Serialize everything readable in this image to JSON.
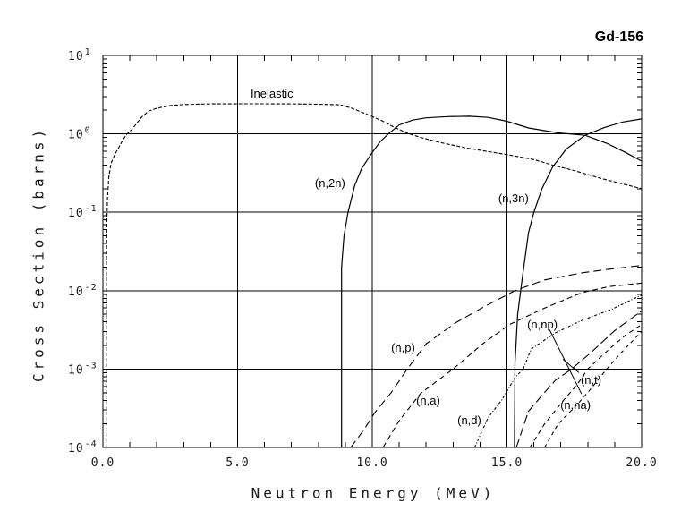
{
  "title": "Gd-156",
  "chart_data": {
    "type": "line",
    "title": "Gd-156",
    "xlabel": "Neutron Energy (MeV)",
    "ylabel": "Cross Section (barns)",
    "x_range": [
      0,
      20
    ],
    "y_exp_range": [
      1,
      -4
    ],
    "grid": true,
    "x_gridlines": [
      5,
      10,
      15
    ],
    "y_gridline_exps": [
      0,
      -1,
      -2,
      -3
    ],
    "x_major_ticks": [
      0,
      5,
      10,
      15,
      20
    ],
    "x_tick_labels": [
      "0.0",
      "5.0",
      "10.0",
      "15.0",
      "20.0"
    ],
    "x_minor_tick_step": 1,
    "y_tick_exps": [
      1,
      0,
      -1,
      -2,
      -3,
      -4
    ],
    "series": [
      {
        "id": "inelastic",
        "name": "Inelastic",
        "line": "dashed-fine",
        "dash": "4,2",
        "points": [
          [
            0.12,
            0.0001
          ],
          [
            0.13,
            0.02
          ],
          [
            0.15,
            0.08
          ],
          [
            0.17,
            0.15
          ],
          [
            0.22,
            0.28
          ],
          [
            0.3,
            0.42
          ],
          [
            0.45,
            0.55
          ],
          [
            0.6,
            0.68
          ],
          [
            0.75,
            0.85
          ],
          [
            0.9,
            1.0
          ],
          [
            1.05,
            1.12
          ],
          [
            1.25,
            1.35
          ],
          [
            1.45,
            1.65
          ],
          [
            1.7,
            1.95
          ],
          [
            2.0,
            2.12
          ],
          [
            2.5,
            2.3
          ],
          [
            3.0,
            2.37
          ],
          [
            4.0,
            2.41
          ],
          [
            5.0,
            2.42
          ],
          [
            6.0,
            2.42
          ],
          [
            7.0,
            2.41
          ],
          [
            8.0,
            2.39
          ],
          [
            8.8,
            2.35
          ],
          [
            9.2,
            2.15
          ],
          [
            9.6,
            1.9
          ],
          [
            10.0,
            1.66
          ],
          [
            10.4,
            1.45
          ],
          [
            10.7,
            1.27
          ],
          [
            11.3,
            1.02
          ],
          [
            11.8,
            0.9
          ],
          [
            12.5,
            0.78
          ],
          [
            13.5,
            0.66
          ],
          [
            14.5,
            0.58
          ],
          [
            15.2,
            0.53
          ],
          [
            16.0,
            0.47
          ],
          [
            16.7,
            0.4
          ],
          [
            17.5,
            0.34
          ],
          [
            18.5,
            0.27
          ],
          [
            19.3,
            0.23
          ],
          [
            20.0,
            0.2
          ]
        ]
      },
      {
        "id": "n2n",
        "name": "(n,2n)",
        "line": "solid",
        "dash": "",
        "points": [
          [
            8.86,
            0.0001
          ],
          [
            8.86,
            0.02
          ],
          [
            8.95,
            0.05
          ],
          [
            9.1,
            0.1
          ],
          [
            9.35,
            0.22
          ],
          [
            9.6,
            0.36
          ],
          [
            10.0,
            0.58
          ],
          [
            10.3,
            0.8
          ],
          [
            10.6,
            1.0
          ],
          [
            11.0,
            1.3
          ],
          [
            11.5,
            1.5
          ],
          [
            12.0,
            1.6
          ],
          [
            12.8,
            1.66
          ],
          [
            13.6,
            1.68
          ],
          [
            14.3,
            1.62
          ],
          [
            15.0,
            1.45
          ],
          [
            15.8,
            1.19
          ],
          [
            16.9,
            1.03
          ],
          [
            17.9,
            0.96
          ],
          [
            18.7,
            0.76
          ],
          [
            19.4,
            0.58
          ],
          [
            20.0,
            0.45
          ]
        ]
      },
      {
        "id": "n3n",
        "name": "(n,3n)",
        "line": "solid",
        "dash": "",
        "points": [
          [
            15.28,
            0.0001
          ],
          [
            15.3,
            0.0012
          ],
          [
            15.4,
            0.005
          ],
          [
            15.55,
            0.013
          ],
          [
            15.8,
            0.055
          ],
          [
            16.0,
            0.1
          ],
          [
            16.3,
            0.2
          ],
          [
            16.7,
            0.38
          ],
          [
            17.2,
            0.64
          ],
          [
            17.9,
            0.96
          ],
          [
            18.6,
            1.2
          ],
          [
            19.3,
            1.42
          ],
          [
            20.0,
            1.55
          ]
        ]
      },
      {
        "id": "np",
        "name": "(n,p)",
        "line": "long-dash",
        "dash": "9,5",
        "points": [
          [
            9.2,
            0.0001
          ],
          [
            9.7,
            0.00017
          ],
          [
            10.1,
            0.00028
          ],
          [
            10.7,
            0.0005
          ],
          [
            11.3,
            0.001
          ],
          [
            12.0,
            0.0021
          ],
          [
            13.1,
            0.0039
          ],
          [
            14.1,
            0.0061
          ],
          [
            15.3,
            0.01
          ],
          [
            16.4,
            0.0137
          ],
          [
            17.8,
            0.0169
          ],
          [
            18.8,
            0.0188
          ],
          [
            20.0,
            0.021
          ]
        ]
      },
      {
        "id": "na",
        "name": "(n,a)",
        "line": "dash",
        "dash": "6,4",
        "points": [
          [
            10.4,
            0.0001
          ],
          [
            11.0,
            0.00022
          ],
          [
            11.8,
            0.00049
          ],
          [
            13.0,
            0.001
          ],
          [
            14.1,
            0.0021
          ],
          [
            15.1,
            0.0037
          ],
          [
            16.4,
            0.006
          ],
          [
            17.8,
            0.0095
          ],
          [
            18.8,
            0.0113
          ],
          [
            20.0,
            0.0125
          ]
        ]
      },
      {
        "id": "nd",
        "name": "(n,d)",
        "line": "dotted",
        "dash": "3,2,1,2",
        "points": [
          [
            13.8,
            0.0001
          ],
          [
            14.3,
            0.00024
          ],
          [
            14.8,
            0.0004
          ],
          [
            15.3,
            0.00078
          ],
          [
            15.6,
            0.001
          ],
          [
            15.9,
            0.0018
          ],
          [
            16.8,
            0.0029
          ],
          [
            17.8,
            0.0042
          ],
          [
            18.9,
            0.0058
          ],
          [
            20.0,
            0.0088
          ]
        ]
      },
      {
        "id": "nnp",
        "name": "(n,np)",
        "line": "long-dash",
        "dash": "10,4",
        "points": [
          [
            15.35,
            0.0001
          ],
          [
            15.8,
            0.00029
          ],
          [
            16.3,
            0.00046
          ],
          [
            16.8,
            0.00072
          ],
          [
            17.4,
            0.001
          ],
          [
            18.1,
            0.0016
          ],
          [
            19.0,
            0.0031
          ],
          [
            20.0,
            0.0055
          ]
        ]
      },
      {
        "id": "nt",
        "name": "(n,t)",
        "line": "dash",
        "dash": "5,4",
        "points": [
          [
            15.85,
            0.0001
          ],
          [
            16.4,
            0.0002
          ],
          [
            17.1,
            0.0004
          ],
          [
            17.6,
            0.00063
          ],
          [
            18.0,
            0.001
          ],
          [
            18.8,
            0.0018
          ],
          [
            19.4,
            0.0027
          ],
          [
            20.0,
            0.0037
          ]
        ]
      },
      {
        "id": "nna",
        "name": "(n,na)",
        "line": "dash",
        "dash": "4,4",
        "points": [
          [
            16.4,
            0.0001
          ],
          [
            16.9,
            0.0002
          ],
          [
            17.6,
            0.00035
          ],
          [
            18.1,
            0.00055
          ],
          [
            18.7,
            0.001
          ],
          [
            19.3,
            0.0017
          ],
          [
            20.0,
            0.003
          ]
        ]
      }
    ],
    "annotations": [
      {
        "id": "inelastic",
        "text": "Inelastic",
        "x": 5.48,
        "y": 2.91
      },
      {
        "id": "n2n",
        "text": "(n,2n)",
        "x": 7.87,
        "y": 0.21
      },
      {
        "id": "n3n",
        "text": "(n,3n)",
        "x": 14.68,
        "y": 0.134
      },
      {
        "id": "np",
        "text": "(n,p)",
        "x": 10.7,
        "y": 0.00167
      },
      {
        "id": "na",
        "text": "(n,a)",
        "x": 11.63,
        "y": 0.000353
      },
      {
        "id": "nd",
        "text": "(n,d)",
        "x": 13.16,
        "y": 0.000198
      },
      {
        "id": "nnp",
        "text": "(n,np)",
        "x": 15.75,
        "y": 0.0033
      },
      {
        "id": "nt",
        "text": "(n,t)",
        "x": 17.74,
        "y": 0.000647
      },
      {
        "id": "nna",
        "text": "(n,na)",
        "x": 16.98,
        "y": 0.00031
      }
    ],
    "leader_lines": [
      {
        "x1": 16.58,
        "y1": 0.00318,
        "x2": 17.77,
        "y2": 0.000482
      },
      {
        "x1": 17.67,
        "y1": 0.0009,
        "x2": 17.08,
        "y2": 0.00133
      }
    ],
    "colors": {
      "line": "#000000",
      "background": "#ffffff"
    }
  }
}
